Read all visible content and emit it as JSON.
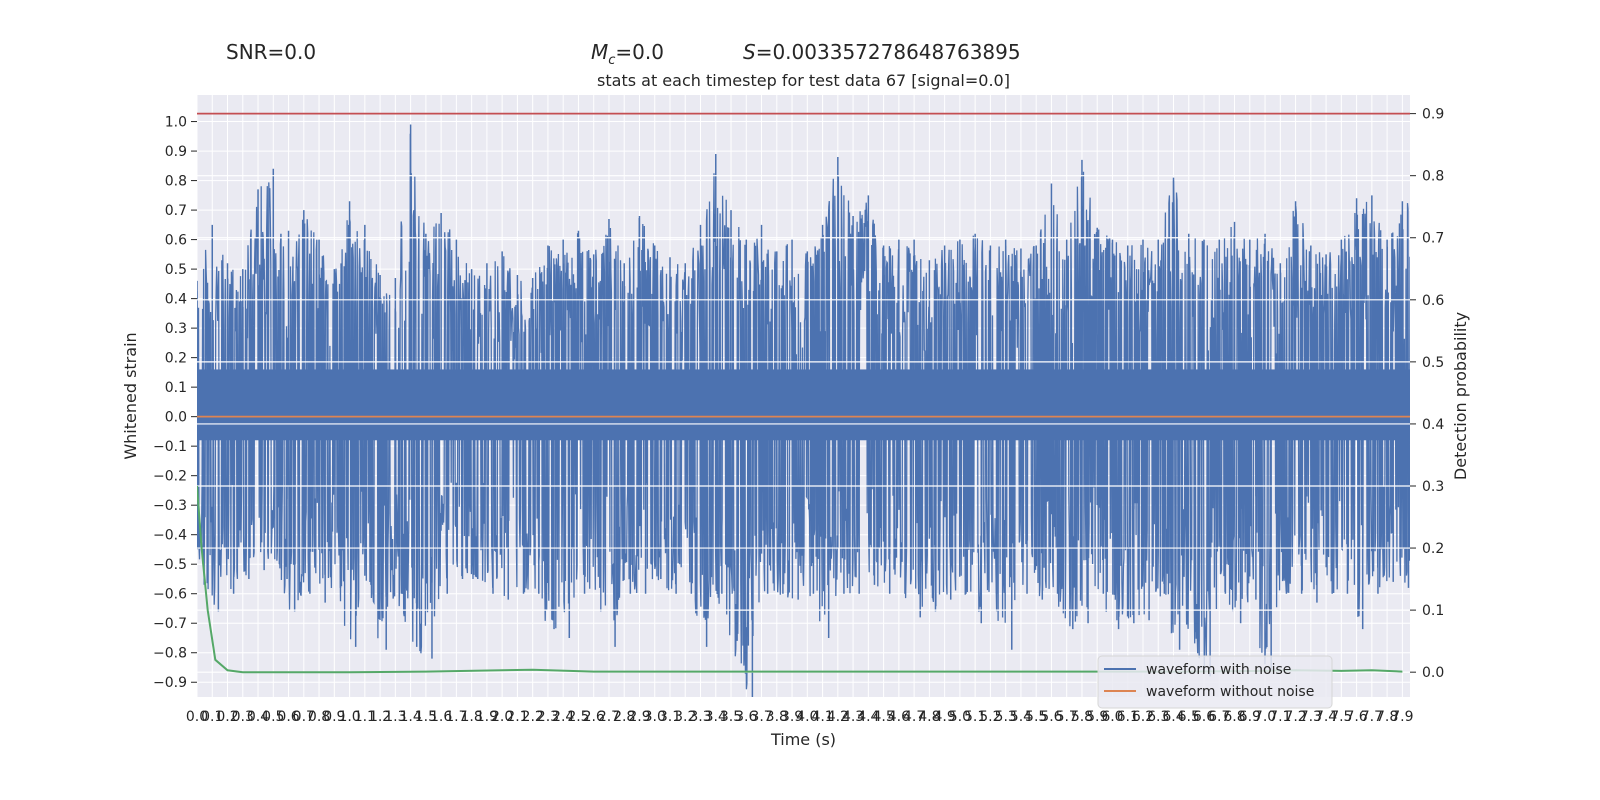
{
  "header": {
    "snr": "SNR=0.0",
    "mc_symbol": "M",
    "mc_sub": "c",
    "mc_value": "=0.0",
    "s_symbol": "S",
    "s_value": "=0.003357278648763895"
  },
  "chart_data": {
    "type": "line",
    "title": "stats at each timestep for test data 67 [signal=0.0]",
    "xlabel": "Time (s)",
    "ylabel": "Whitened strain",
    "ylabel_right": "Detection probability",
    "xlim": [
      0,
      7.95
    ],
    "ylim": [
      -0.95,
      1.09
    ],
    "ylim_right": [
      -0.04,
      0.93
    ],
    "grid": true,
    "legend_position": "lower-right",
    "x_ticks": [
      "0.0",
      "0.1",
      "0.2",
      "0.3",
      "0.4",
      "0.5",
      "0.6",
      "0.7",
      "0.8",
      "0.9",
      "1.0",
      "1.1",
      "1.2",
      "1.3",
      "1.4",
      "1.5",
      "1.6",
      "1.7",
      "1.8",
      "1.9",
      "2.0",
      "2.1",
      "2.2",
      "2.3",
      "2.4",
      "2.5",
      "2.6",
      "2.7",
      "2.8",
      "2.9",
      "3.0",
      "3.1",
      "3.2",
      "3.3",
      "3.4",
      "3.5",
      "3.6",
      "3.7",
      "3.8",
      "3.9",
      "4.0",
      "4.1",
      "4.2",
      "4.3",
      "4.4",
      "4.5",
      "4.6",
      "4.7",
      "4.8",
      "4.9",
      "5.0",
      "5.1",
      "5.2",
      "5.3",
      "5.4",
      "5.5",
      "5.6",
      "5.7",
      "5.8",
      "5.9",
      "6.0",
      "6.1",
      "6.2",
      "6.3",
      "6.4",
      "6.5",
      "6.6",
      "6.7",
      "6.8",
      "6.9",
      "7.0",
      "7.1",
      "7.2",
      "7.3",
      "7.4",
      "7.5",
      "7.6",
      "7.7",
      "7.8",
      "7.9"
    ],
    "y_ticks": [
      "1.0",
      "0.9",
      "0.8",
      "0.7",
      "0.6",
      "0.5",
      "0.4",
      "0.3",
      "0.2",
      "0.1",
      "0.0",
      "−0.1",
      "−0.2",
      "−0.3",
      "−0.4",
      "−0.5",
      "−0.6",
      "−0.7",
      "−0.8",
      "−0.9"
    ],
    "y_ticks_right": [
      "0.9",
      "0.8",
      "0.7",
      "0.6",
      "0.5",
      "0.4",
      "0.3",
      "0.2",
      "0.1",
      "0.0"
    ],
    "series": [
      {
        "name": "waveform with noise",
        "color": "#4c72b0",
        "axis": "left",
        "envelope_upper_x": [
          0.0,
          0.1,
          0.2,
          0.3,
          0.4,
          0.5,
          0.55,
          0.6,
          0.7,
          0.8,
          0.9,
          1.0,
          1.1,
          1.2,
          1.3,
          1.4,
          1.5,
          1.6,
          1.7,
          1.8,
          1.9,
          2.0,
          2.1,
          2.2,
          2.3,
          2.4,
          2.5,
          2.6,
          2.7,
          2.8,
          2.9,
          3.0,
          3.1,
          3.2,
          3.3,
          3.4,
          3.5,
          3.6,
          3.7,
          3.8,
          3.9,
          4.0,
          4.1,
          4.2,
          4.3,
          4.4,
          4.5,
          4.6,
          4.7,
          4.8,
          4.9,
          5.0,
          5.1,
          5.2,
          5.3,
          5.4,
          5.5,
          5.6,
          5.7,
          5.8,
          5.9,
          6.0,
          6.1,
          6.2,
          6.3,
          6.4,
          6.5,
          6.6,
          6.7,
          6.8,
          6.9,
          7.0,
          7.1,
          7.2,
          7.3,
          7.4,
          7.5,
          7.6,
          7.7,
          7.8,
          7.9
        ],
        "envelope_upper": [
          0.46,
          0.65,
          0.52,
          0.5,
          0.77,
          0.84,
          0.62,
          0.63,
          0.7,
          0.6,
          0.5,
          0.73,
          0.65,
          0.48,
          0.47,
          0.99,
          0.62,
          0.69,
          0.6,
          0.5,
          0.52,
          0.56,
          0.48,
          0.47,
          0.58,
          0.6,
          0.63,
          0.55,
          0.67,
          0.52,
          0.68,
          0.58,
          0.54,
          0.52,
          0.65,
          0.89,
          0.7,
          0.6,
          0.65,
          0.56,
          0.6,
          0.56,
          0.65,
          0.88,
          0.68,
          0.75,
          0.58,
          0.6,
          0.6,
          0.53,
          0.58,
          0.6,
          0.62,
          0.58,
          0.6,
          0.57,
          0.58,
          0.79,
          0.6,
          0.87,
          0.64,
          0.6,
          0.58,
          0.6,
          0.6,
          0.81,
          0.62,
          0.6,
          0.6,
          0.66,
          0.6,
          0.62,
          0.52,
          0.73,
          0.58,
          0.55,
          0.6,
          0.74,
          0.75,
          0.6,
          0.73
        ],
        "envelope_lower": [
          -0.5,
          -0.66,
          -0.6,
          -0.55,
          -0.52,
          -0.5,
          -0.55,
          -0.66,
          -0.6,
          -0.63,
          -0.58,
          -0.78,
          -0.57,
          -0.79,
          -0.6,
          -0.78,
          -0.82,
          -0.6,
          -0.55,
          -0.55,
          -0.6,
          -0.62,
          -0.6,
          -0.6,
          -0.72,
          -0.75,
          -0.6,
          -0.58,
          -0.78,
          -0.6,
          -0.6,
          -0.55,
          -0.6,
          -0.6,
          -0.78,
          -0.6,
          -0.76,
          -0.95,
          -0.6,
          -0.6,
          -0.62,
          -0.6,
          -0.75,
          -0.6,
          -0.6,
          -0.57,
          -0.6,
          -0.6,
          -0.68,
          -0.66,
          -0.62,
          -0.6,
          -0.7,
          -0.6,
          -0.79,
          -0.6,
          -0.62,
          -0.6,
          -0.72,
          -0.7,
          -0.6,
          -0.72,
          -0.7,
          -0.69,
          -0.6,
          -0.79,
          -0.73,
          -0.88,
          -0.6,
          -0.7,
          -0.62,
          -0.87,
          -0.6,
          -0.6,
          -0.63,
          -0.6,
          -0.6,
          -0.72,
          -0.6,
          -0.56,
          -0.58
        ]
      },
      {
        "name": "waveform without noise",
        "color": "#dd8452",
        "axis": "left",
        "x": [
          0,
          7.95
        ],
        "values": [
          0,
          0
        ]
      },
      {
        "color": "#55a868",
        "axis": "right",
        "x": [
          0.0,
          0.03,
          0.07,
          0.12,
          0.2,
          0.3,
          0.45,
          0.7,
          1.0,
          1.5,
          2.0,
          2.2,
          2.6,
          3.0,
          4.0,
          5.0,
          6.0,
          6.5,
          7.0,
          7.2,
          7.5,
          7.7,
          7.9
        ],
        "values": [
          0.3,
          0.2,
          0.1,
          0.02,
          0.003,
          0.0,
          0.0,
          0.0,
          0.0,
          0.001,
          0.003,
          0.004,
          0.001,
          0.001,
          0.001,
          0.001,
          0.001,
          0.001,
          0.002,
          0.003,
          0.002,
          0.003,
          0.001
        ]
      },
      {
        "color": "#c44e52",
        "axis": "right",
        "x": [
          0,
          7.95
        ],
        "values": [
          0.9,
          0.9
        ]
      }
    ]
  }
}
